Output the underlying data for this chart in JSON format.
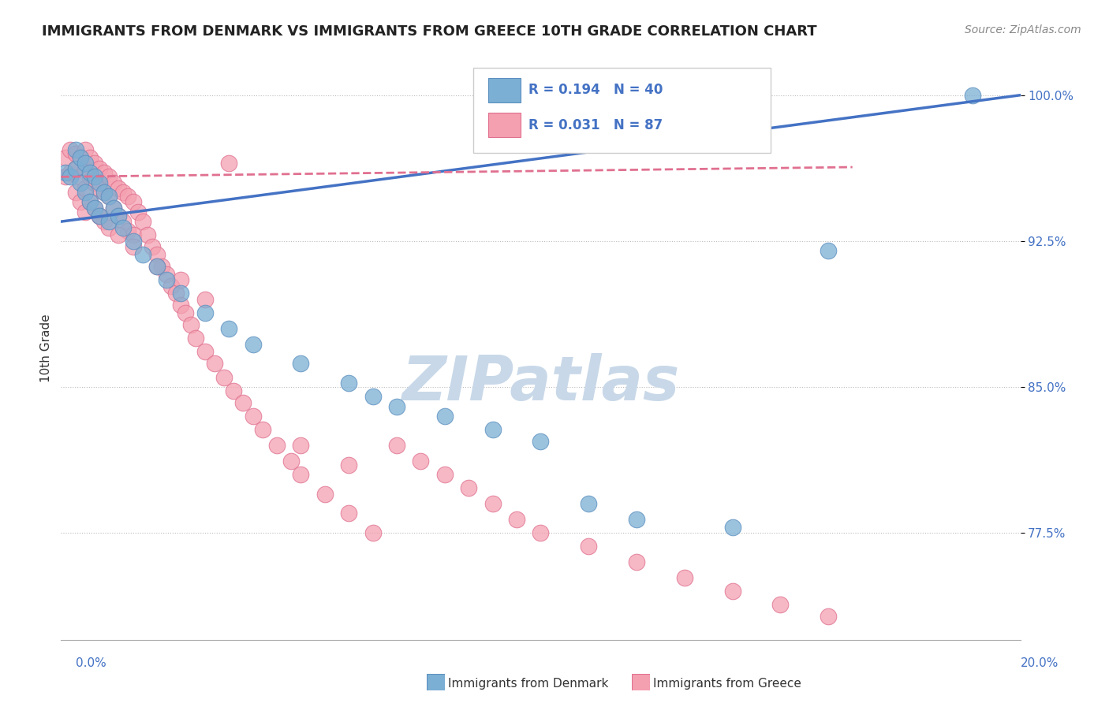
{
  "title": "IMMIGRANTS FROM DENMARK VS IMMIGRANTS FROM GREECE 10TH GRADE CORRELATION CHART",
  "source": "Source: ZipAtlas.com",
  "ylabel": "10th Grade",
  "yticks": [
    "77.5%",
    "85.0%",
    "92.5%",
    "100.0%"
  ],
  "ytick_vals": [
    0.775,
    0.85,
    0.925,
    1.0
  ],
  "xlim": [
    0.0,
    0.2
  ],
  "ylim": [
    0.72,
    1.02
  ],
  "denmark_R": 0.194,
  "denmark_N": 40,
  "greece_R": 0.031,
  "greece_N": 87,
  "denmark_color": "#7bafd4",
  "greece_color": "#f4a0b0",
  "denmark_color_dark": "#5b8fbf",
  "greece_color_dark": "#e07090",
  "trend_blue": "#4472c4",
  "trend_pink": "#e07090",
  "watermark": "ZIPatlas",
  "watermark_color": "#c8d8e8",
  "denmark_scatter_x": [
    0.001,
    0.002,
    0.003,
    0.003,
    0.004,
    0.004,
    0.005,
    0.005,
    0.006,
    0.006,
    0.007,
    0.007,
    0.008,
    0.008,
    0.009,
    0.01,
    0.01,
    0.011,
    0.012,
    0.013,
    0.015,
    0.017,
    0.02,
    0.022,
    0.025,
    0.03,
    0.035,
    0.04,
    0.05,
    0.06,
    0.065,
    0.07,
    0.08,
    0.09,
    0.1,
    0.11,
    0.12,
    0.14,
    0.16,
    0.19
  ],
  "denmark_scatter_y": [
    0.96,
    0.958,
    0.972,
    0.962,
    0.968,
    0.955,
    0.965,
    0.95,
    0.96,
    0.945,
    0.958,
    0.942,
    0.955,
    0.938,
    0.95,
    0.948,
    0.935,
    0.942,
    0.938,
    0.932,
    0.925,
    0.918,
    0.912,
    0.905,
    0.898,
    0.888,
    0.88,
    0.872,
    0.862,
    0.852,
    0.845,
    0.84,
    0.835,
    0.828,
    0.822,
    0.79,
    0.782,
    0.778,
    0.92,
    1.0
  ],
  "greece_scatter_x": [
    0.001,
    0.001,
    0.002,
    0.002,
    0.003,
    0.003,
    0.003,
    0.004,
    0.004,
    0.004,
    0.005,
    0.005,
    0.005,
    0.005,
    0.006,
    0.006,
    0.006,
    0.007,
    0.007,
    0.007,
    0.008,
    0.008,
    0.008,
    0.009,
    0.009,
    0.009,
    0.01,
    0.01,
    0.01,
    0.011,
    0.011,
    0.012,
    0.012,
    0.013,
    0.013,
    0.014,
    0.014,
    0.015,
    0.015,
    0.016,
    0.017,
    0.018,
    0.019,
    0.02,
    0.021,
    0.022,
    0.023,
    0.024,
    0.025,
    0.026,
    0.027,
    0.028,
    0.03,
    0.032,
    0.034,
    0.036,
    0.038,
    0.04,
    0.042,
    0.045,
    0.048,
    0.05,
    0.055,
    0.06,
    0.065,
    0.07,
    0.075,
    0.08,
    0.085,
    0.09,
    0.095,
    0.1,
    0.11,
    0.12,
    0.13,
    0.14,
    0.15,
    0.16,
    0.035,
    0.06,
    0.008,
    0.012,
    0.015,
    0.02,
    0.025,
    0.03,
    0.05
  ],
  "greece_scatter_y": [
    0.968,
    0.958,
    0.972,
    0.96,
    0.97,
    0.962,
    0.95,
    0.968,
    0.958,
    0.945,
    0.972,
    0.962,
    0.952,
    0.94,
    0.968,
    0.958,
    0.945,
    0.965,
    0.955,
    0.942,
    0.962,
    0.952,
    0.938,
    0.96,
    0.95,
    0.935,
    0.958,
    0.948,
    0.932,
    0.955,
    0.942,
    0.952,
    0.938,
    0.95,
    0.935,
    0.948,
    0.93,
    0.945,
    0.928,
    0.94,
    0.935,
    0.928,
    0.922,
    0.918,
    0.912,
    0.908,
    0.902,
    0.898,
    0.892,
    0.888,
    0.882,
    0.875,
    0.868,
    0.862,
    0.855,
    0.848,
    0.842,
    0.835,
    0.828,
    0.82,
    0.812,
    0.805,
    0.795,
    0.785,
    0.775,
    0.82,
    0.812,
    0.805,
    0.798,
    0.79,
    0.782,
    0.775,
    0.768,
    0.76,
    0.752,
    0.745,
    0.738,
    0.732,
    0.965,
    0.81,
    0.938,
    0.928,
    0.922,
    0.912,
    0.905,
    0.895,
    0.82
  ],
  "dk_trend_x0": 0.0,
  "dk_trend_y0": 0.935,
  "dk_trend_x1": 0.2,
  "dk_trend_y1": 1.0,
  "gr_trend_x0": 0.0,
  "gr_trend_y0": 0.958,
  "gr_trend_x1": 0.165,
  "gr_trend_y1": 0.963
}
